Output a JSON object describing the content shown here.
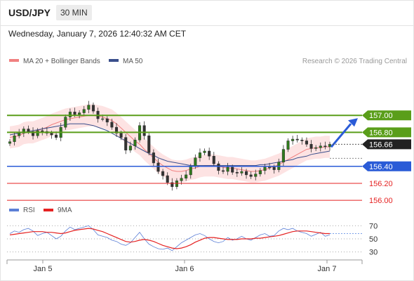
{
  "header": {
    "symbol": "USD/JPY",
    "timeframe": "30 MIN",
    "datetime": "Wednesday, January 7, 2026 12:40:32 AM CET"
  },
  "legend": {
    "ma20": "MA 20 + Bollinger Bands",
    "ma50": "MA 50",
    "copyright": "Research © 2026 Trading Central",
    "rsi": "RSI",
    "rsi_ma": "9MA"
  },
  "colors": {
    "green": "#5a9e1a",
    "blue": "#2a5bd7",
    "red": "#e52222",
    "navy": "#3a4f8c",
    "ma20": "#f08080",
    "band": "#fde3e3",
    "candle": "#2f7a1c"
  },
  "chart_data": {
    "type": "candlestick",
    "x_ticks": [
      "Jan 5",
      "Jan 6",
      "Jan 7"
    ],
    "y_range": [
      155.96,
      157.2
    ],
    "price_levels": [
      {
        "label": "157.00",
        "value": 157.0,
        "kind": "resistance"
      },
      {
        "label": "156.80",
        "value": 156.8,
        "kind": "resistance"
      },
      {
        "label": "156.66",
        "value": 156.66,
        "kind": "last"
      },
      {
        "label": "156.40",
        "value": 156.4,
        "kind": "pivot"
      },
      {
        "label": "156.20",
        "value": 156.2,
        "kind": "support"
      },
      {
        "label": "156.00",
        "value": 156.0,
        "kind": "support"
      }
    ],
    "close_series": [
      156.69,
      156.76,
      156.79,
      156.84,
      156.81,
      156.76,
      156.82,
      156.81,
      156.79,
      156.77,
      156.74,
      156.86,
      156.98,
      157.04,
      157.01,
      157.03,
      157.07,
      157.12,
      157.05,
      156.96,
      156.96,
      156.92,
      156.86,
      156.79,
      156.74,
      156.59,
      156.64,
      156.71,
      156.88,
      156.76,
      156.56,
      156.44,
      156.34,
      156.29,
      156.21,
      156.16,
      156.23,
      156.26,
      156.3,
      156.4,
      156.5,
      156.56,
      156.58,
      156.52,
      156.43,
      156.35,
      156.34,
      156.39,
      156.33,
      156.32,
      156.34,
      156.3,
      156.28,
      156.31,
      156.35,
      156.39,
      156.39,
      156.36,
      156.45,
      156.6,
      156.7,
      156.72,
      156.71,
      156.7,
      156.66,
      156.61,
      156.62,
      156.64,
      156.63,
      156.66
    ],
    "ma20_series": [
      156.74,
      156.75,
      156.76,
      156.79,
      156.8,
      156.8,
      156.82,
      156.84,
      156.86,
      156.89,
      156.91,
      156.93,
      156.95,
      156.96,
      156.97,
      156.98,
      156.99,
      157.0,
      157.0,
      156.99,
      156.98,
      156.96,
      156.94,
      156.9,
      156.85,
      156.8,
      156.75,
      156.7,
      156.66,
      156.6,
      156.55,
      156.5,
      156.45,
      156.41,
      156.38,
      156.35,
      156.34,
      156.34,
      156.35,
      156.37,
      156.38,
      156.4,
      156.41,
      156.41,
      156.41,
      156.4,
      156.39,
      156.38,
      156.38,
      156.37,
      156.36,
      156.35,
      156.34,
      156.34,
      156.35,
      156.36,
      156.38,
      156.4,
      156.42,
      156.45,
      156.48,
      156.51,
      156.54,
      156.57,
      156.6,
      156.61,
      156.62,
      156.62,
      156.63,
      156.63
    ],
    "ma50_series": [
      156.77,
      156.78,
      156.79,
      156.8,
      156.81,
      156.82,
      156.83,
      156.84,
      156.85,
      156.86,
      156.87,
      156.88,
      156.89,
      156.9,
      156.9,
      156.9,
      156.9,
      156.89,
      156.88,
      156.86,
      156.84,
      156.82,
      156.79,
      156.76,
      156.73,
      156.7,
      156.67,
      156.64,
      156.61,
      156.58,
      156.55,
      156.53,
      156.5,
      156.48,
      156.46,
      156.45,
      156.44,
      156.43,
      156.42,
      156.41,
      156.41,
      156.41,
      156.41,
      156.41,
      156.41,
      156.41,
      156.41,
      156.41,
      156.41,
      156.41,
      156.41,
      156.41,
      156.41,
      156.41,
      156.42,
      156.42,
      156.43,
      156.44,
      156.45,
      156.46,
      156.47,
      156.48,
      156.5,
      156.51,
      156.52,
      156.54,
      156.55,
      156.56,
      156.57,
      156.58
    ],
    "band_width": 0.13,
    "forecast": {
      "from": 156.66,
      "to": 157.0
    },
    "rsi": {
      "levels": [
        70,
        50,
        30
      ],
      "range": [
        20,
        80
      ],
      "values": [
        58,
        62,
        60,
        64,
        66,
        62,
        55,
        58,
        60,
        55,
        50,
        54,
        62,
        68,
        64,
        66,
        68,
        70,
        64,
        56,
        54,
        52,
        48,
        46,
        42,
        40,
        44,
        52,
        60,
        50,
        42,
        38,
        35,
        34,
        36,
        32,
        38,
        44,
        48,
        52,
        56,
        58,
        55,
        50,
        46,
        44,
        46,
        52,
        48,
        50,
        54,
        50,
        48,
        52,
        56,
        58,
        54,
        55,
        62,
        66,
        64,
        66,
        62,
        60,
        58,
        54,
        57,
        60,
        54,
        56
      ],
      "ma_values": [
        56,
        57,
        58,
        59,
        60,
        61,
        61,
        61,
        60,
        60,
        59,
        58,
        59,
        61,
        63,
        64,
        65,
        66,
        65,
        63,
        61,
        58,
        55,
        52,
        49,
        46,
        45,
        46,
        48,
        49,
        48,
        46,
        43,
        40,
        38,
        36,
        35,
        36,
        38,
        41,
        45,
        48,
        51,
        52,
        52,
        51,
        50,
        49,
        49,
        49,
        50,
        50,
        50,
        51,
        51,
        52,
        53,
        54,
        55,
        57,
        59,
        61,
        62,
        62,
        62,
        61,
        60,
        59,
        58,
        58
      ]
    }
  }
}
